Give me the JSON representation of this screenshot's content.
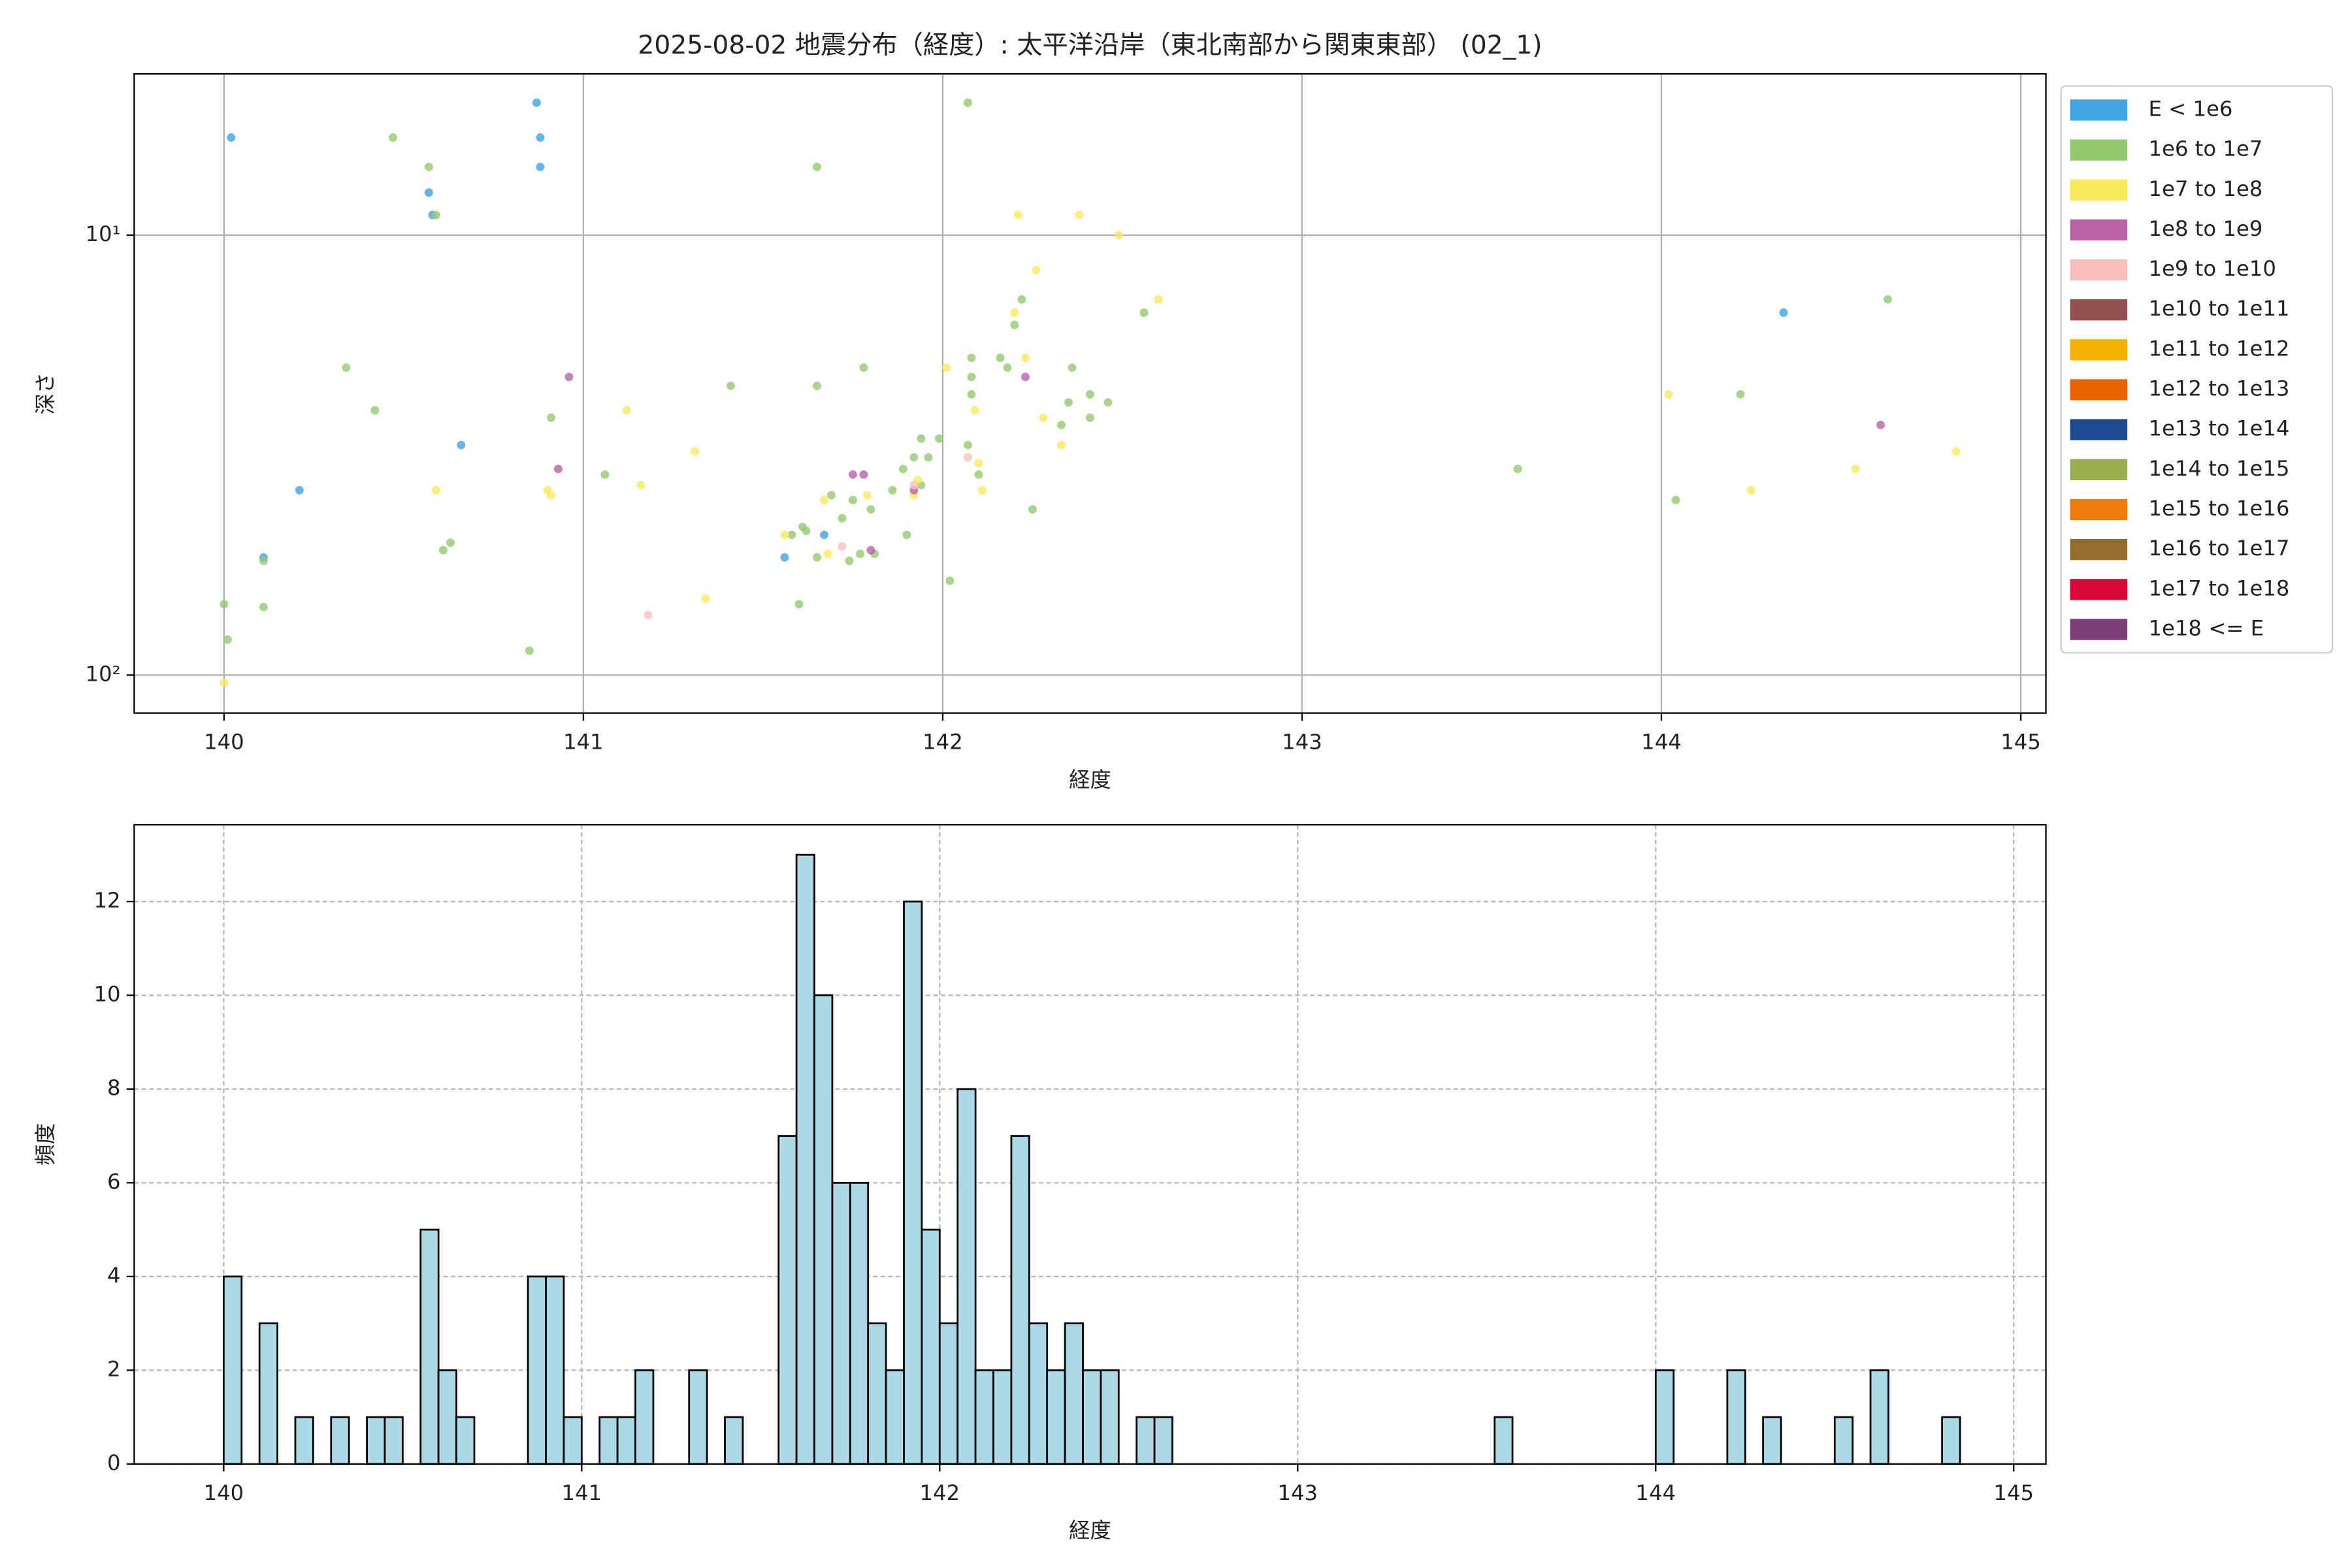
{
  "chart_data": [
    {
      "type": "scatter",
      "title": "2025-08-02 地震分布（経度）: 太平洋沿岸（東北南部から関東東部） (02_1)",
      "x_label": "経度",
      "y_label": "深さ",
      "xlim": [
        139.75,
        145.07
      ],
      "xticks": [
        140,
        141,
        142,
        143,
        144,
        145
      ],
      "ylim": [
        4.3,
        122
      ],
      "y_log": true,
      "y_inverted": true,
      "yticks": [
        {
          "value": 10,
          "label": "10¹"
        },
        {
          "value": 100,
          "label": "10²"
        }
      ],
      "grid": true,
      "legend": "outside right",
      "series": [
        {
          "name": "E < 1e6",
          "color": "#3fa4e0",
          "x": [
            140.02,
            140.11,
            140.21,
            140.57,
            140.58,
            140.66,
            140.87,
            140.88,
            140.88,
            141.56,
            141.67,
            144.34
          ],
          "values": [
            6,
            54,
            38,
            8,
            9,
            30,
            5,
            6,
            7,
            54,
            48,
            15
          ]
        },
        {
          "name": "1e6 to 1e7",
          "color": "#92c96e",
          "x": [
            140,
            140.01,
            140.11,
            140.11,
            140.34,
            140.42,
            140.47,
            140.57,
            140.59,
            140.61,
            140.63,
            140.85,
            140.91,
            141.06,
            141.41,
            141.65,
            141.65,
            141.78,
            142.07,
            141.61,
            141.6,
            141.58,
            141.62,
            141.65,
            141.69,
            141.72,
            141.75,
            141.74,
            141.77,
            141.8,
            141.81,
            141.86,
            141.89,
            141.9,
            141.92,
            141.94,
            141.94,
            141.96,
            141.99,
            142.02,
            142.07,
            142.08,
            142.08,
            142.08,
            142.1,
            142.16,
            142.18,
            142.2,
            142.22,
            142.25,
            142.33,
            142.35,
            142.36,
            142.41,
            142.41,
            142.46,
            142.56,
            143.6,
            144.04,
            144.22,
            144.63
          ],
          "values": [
            69,
            83,
            55,
            70,
            20,
            25,
            6,
            7,
            9,
            52,
            50,
            88,
            26,
            35,
            22,
            7,
            22,
            20,
            5,
            46,
            69,
            48,
            47,
            54,
            39,
            44,
            40,
            55,
            53,
            42,
            53,
            38,
            34,
            48,
            32,
            37,
            29,
            32,
            29,
            61,
            30,
            19,
            21,
            23,
            35,
            19,
            20,
            16,
            14,
            42,
            27,
            24,
            20,
            23,
            26,
            24,
            15,
            34,
            40,
            23,
            14
          ]
        },
        {
          "name": "1e7 to 1e8",
          "color": "#fbe95c",
          "x": [
            140,
            140.59,
            140.9,
            140.91,
            141.12,
            141.16,
            141.31,
            141.34,
            141.56,
            141.67,
            141.68,
            141.79,
            141.92,
            141.93,
            142.01,
            142.09,
            142.1,
            142.11,
            142.2,
            142.21,
            142.23,
            142.26,
            142.28,
            142.33,
            142.38,
            142.49,
            142.6,
            144.02,
            144.25,
            144.54,
            144.82
          ],
          "values": [
            104,
            38,
            38,
            39,
            25,
            37,
            31,
            67,
            48,
            40,
            53,
            39,
            39,
            36,
            20,
            25,
            33,
            38,
            15,
            9,
            19,
            12,
            26,
            30,
            9,
            10,
            14,
            23,
            38,
            34,
            31
          ]
        },
        {
          "name": "1e8 to 1e9",
          "color": "#b863a6",
          "x": [
            140.96,
            140.93,
            141.75,
            141.78,
            141.8,
            141.92,
            142.23,
            144.61
          ],
          "values": [
            21,
            34,
            35,
            35,
            52,
            38,
            21,
            27
          ]
        },
        {
          "name": "1e9 to 1e10",
          "color": "#f6bfbc",
          "x": [
            141.18,
            141.72,
            142.07,
            141.92
          ],
          "values": [
            73,
            51,
            32,
            37
          ]
        },
        {
          "name": "1e10 to 1e11",
          "color": "#955251",
          "x": [],
          "values": []
        },
        {
          "name": "1e11 to 1e12",
          "color": "#f5b200",
          "x": [],
          "values": []
        },
        {
          "name": "1e12 to 1e13",
          "color": "#ec6100",
          "x": [],
          "values": []
        },
        {
          "name": "1e13 to 1e14",
          "color": "#1e4b8f",
          "x": [],
          "values": []
        },
        {
          "name": "1e14 to 1e15",
          "color": "#9aad4f",
          "x": [],
          "values": []
        },
        {
          "name": "1e15 to 1e16",
          "color": "#f07d09",
          "x": [],
          "values": []
        },
        {
          "name": "1e16 to 1e17",
          "color": "#956d2c",
          "x": [],
          "values": []
        },
        {
          "name": "1e17 to 1e18",
          "color": "#d70a3a",
          "x": [],
          "values": []
        },
        {
          "name": "1e18 <= E",
          "color": "#7c3e75",
          "x": [],
          "values": []
        }
      ]
    },
    {
      "type": "histogram",
      "x_label": "経度",
      "y_label": "頻度",
      "color": "#add8e6",
      "xlim": [
        139.75,
        145.09
      ],
      "xticks": [
        140,
        141,
        142,
        143,
        144,
        145
      ],
      "ylim": [
        0,
        13.64
      ],
      "yticks": [
        0,
        2,
        4,
        6,
        8,
        10,
        12
      ],
      "grid": true,
      "bins": [
        140,
        140.05,
        140.1,
        140.15,
        140.2,
        140.25,
        140.3,
        140.35,
        140.4,
        140.45,
        140.5,
        140.55,
        140.6,
        140.65,
        140.7,
        140.75,
        140.8,
        140.85,
        140.9,
        140.95,
        141,
        141.05,
        141.1,
        141.15,
        141.2,
        141.25,
        141.3,
        141.35,
        141.4,
        141.45,
        141.5,
        141.55,
        141.6,
        141.65,
        141.7,
        141.75,
        141.8,
        141.85,
        141.9,
        141.95,
        142,
        142.05,
        142.1,
        142.15,
        142.2,
        142.25,
        142.3,
        142.35,
        142.4,
        142.45,
        142.5,
        142.55,
        142.6,
        142.65,
        142.7,
        142.75,
        142.8,
        142.85,
        142.9,
        142.95,
        143,
        143.05,
        143.1,
        143.15,
        143.2,
        143.25,
        143.3,
        143.35,
        143.4,
        143.45,
        143.5,
        143.55,
        143.6,
        143.65,
        143.7,
        143.75,
        143.8,
        143.85,
        143.9,
        143.95,
        144,
        144.05,
        144.1,
        144.15,
        144.2,
        144.25,
        144.3,
        144.35,
        144.4,
        144.45,
        144.5,
        144.55,
        144.6,
        144.65,
        144.7,
        144.75,
        144.8,
        144.85
      ],
      "values": [
        4,
        0,
        3,
        0,
        1,
        0,
        1,
        0,
        1,
        1,
        0,
        5,
        2,
        1,
        0,
        0,
        0,
        4,
        4,
        1,
        0,
        1,
        1,
        2,
        0,
        0,
        2,
        0,
        1,
        0,
        0,
        7,
        13,
        10,
        6,
        6,
        3,
        2,
        12,
        5,
        3,
        8,
        2,
        2,
        7,
        3,
        2,
        3,
        2,
        2,
        0,
        1,
        1,
        0,
        0,
        0,
        0,
        0,
        0,
        0,
        0,
        0,
        0,
        0,
        0,
        0,
        0,
        0,
        0,
        0,
        0,
        1,
        0,
        0,
        0,
        0,
        0,
        0,
        0,
        0,
        2,
        0,
        0,
        0,
        2,
        0,
        1,
        0,
        0,
        0,
        1,
        0,
        2,
        0,
        0,
        0,
        1
      ]
    }
  ]
}
